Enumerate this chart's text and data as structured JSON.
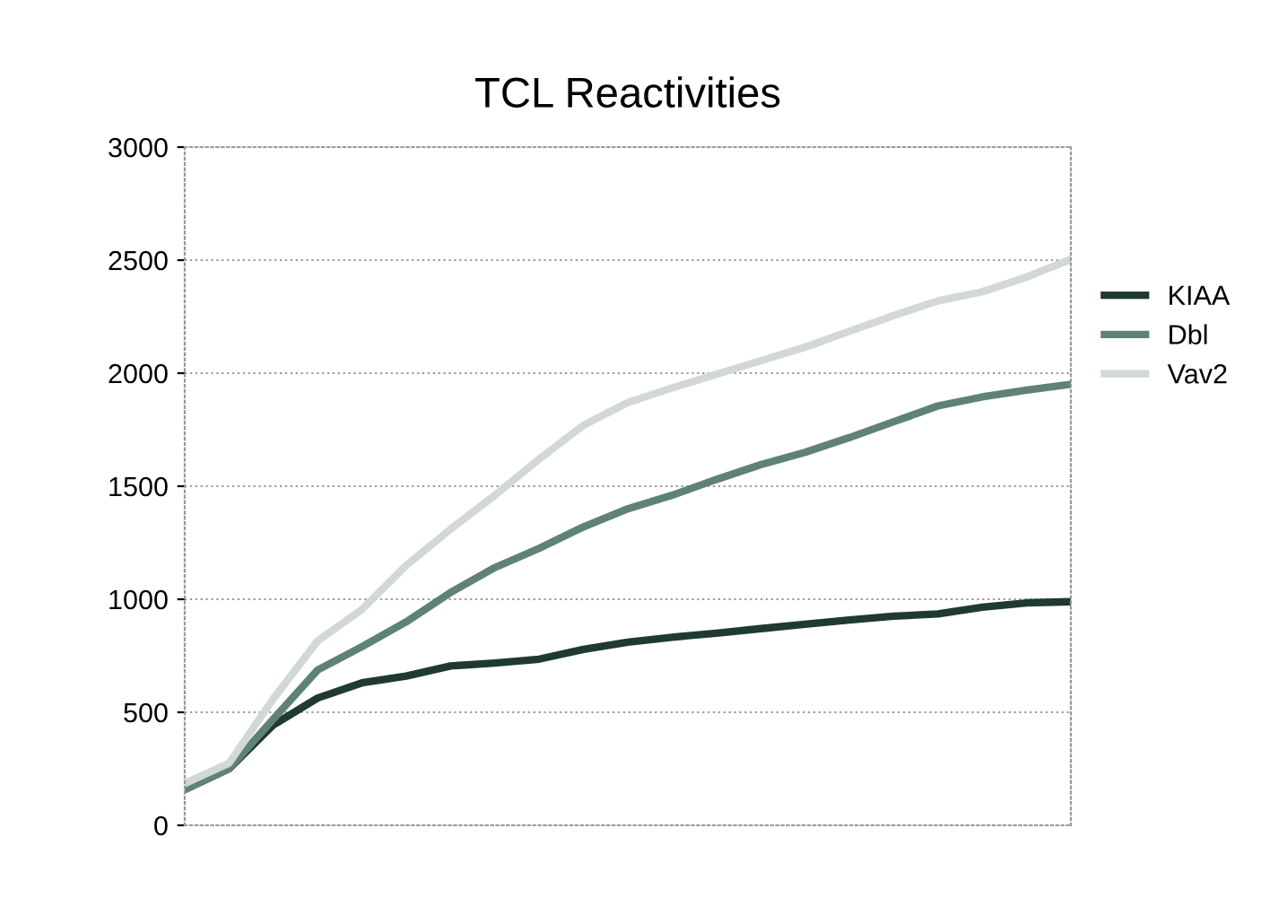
{
  "chart_data": {
    "type": "line",
    "title": "TCL Reactivities",
    "categories": [
      null,
      null,
      null,
      null,
      null,
      null,
      null,
      null,
      null,
      null,
      null,
      null,
      null,
      null,
      null,
      null,
      null,
      null,
      null,
      null,
      null
    ],
    "series": [
      {
        "name": "KIAA",
        "color": "#1f3a33",
        "values": [
          158,
          250,
          444,
          563,
          630,
          660,
          705,
          718,
          735,
          778,
          810,
          832,
          850,
          870,
          889,
          908,
          925,
          935,
          965,
          984,
          989
        ]
      },
      {
        "name": "Dbl",
        "color": "#5f8278",
        "values": [
          158,
          250,
          470,
          687,
          790,
          900,
          1030,
          1140,
          1225,
          1320,
          1400,
          1460,
          1530,
          1595,
          1650,
          1715,
          1785,
          1855,
          1895,
          1925,
          1951
        ]
      },
      {
        "name": "Vav2",
        "color": "#d2d8d4",
        "values": [
          185,
          275,
          560,
          816,
          955,
          1150,
          1310,
          1460,
          1620,
          1770,
          1870,
          1935,
          1995,
          2055,
          2115,
          2185,
          2255,
          2320,
          2360,
          2425,
          2504
        ]
      }
    ],
    "ylim": [
      0,
      3000
    ],
    "yticks": [
      0,
      500,
      1000,
      1500,
      2000,
      2500,
      3000
    ],
    "grid": "y",
    "legend": "right",
    "marker": "none",
    "line_style": "solid"
  }
}
